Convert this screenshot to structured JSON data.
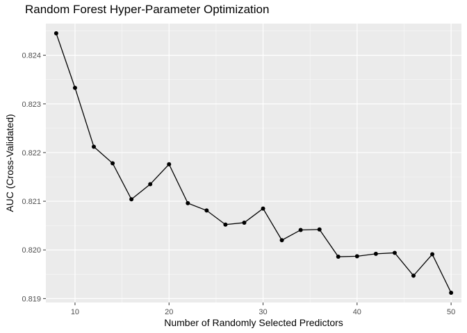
{
  "chart_data": {
    "type": "line",
    "title": "Random Forest Hyper-Parameter Optimization",
    "xlabel": "Number of Randomly Selected Predictors",
    "ylabel": "AUC (Cross-Validated)",
    "x": [
      8,
      10,
      12,
      14,
      16,
      18,
      20,
      22,
      24,
      26,
      28,
      30,
      32,
      34,
      36,
      38,
      40,
      42,
      44,
      46,
      48,
      50
    ],
    "y": [
      0.82445,
      0.82333,
      0.82212,
      0.82178,
      0.82104,
      0.82135,
      0.82176,
      0.82096,
      0.82081,
      0.82052,
      0.82056,
      0.82085,
      0.8202,
      0.82041,
      0.82042,
      0.81986,
      0.81987,
      0.81992,
      0.81994,
      0.81947,
      0.81991,
      0.81912
    ],
    "xlim": [
      6.9,
      51.1
    ],
    "ylim": [
      0.81892,
      0.82465
    ],
    "x_ticks": [
      10,
      20,
      30,
      40,
      50
    ],
    "y_ticks": [
      0.819,
      0.82,
      0.821,
      0.822,
      0.823,
      0.824
    ],
    "x_tick_labels": [
      "10",
      "20",
      "30",
      "40",
      "50"
    ],
    "y_tick_labels": [
      "0.819",
      "0.820",
      "0.821",
      "0.822",
      "0.823",
      "0.824"
    ],
    "grid": true,
    "markers": true,
    "colors": {
      "panel": "#ebebeb",
      "grid_major": "#ffffff",
      "line": "#000000",
      "point": "#000000"
    }
  }
}
